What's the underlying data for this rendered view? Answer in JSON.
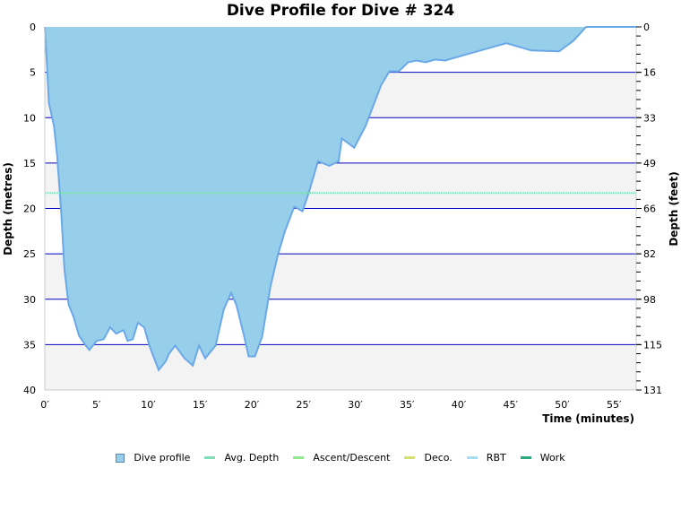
{
  "chart_data": {
    "type": "area",
    "title": "Dive Profile for Dive # 324",
    "xlabel": "Time (minutes)",
    "ylabel": "Depth (metres)",
    "ylabel_right": "Depth (feet)",
    "xlim": [
      0,
      57.2
    ],
    "ylim": [
      0,
      40
    ],
    "y_inverted": true,
    "x_ticks": [
      "0′",
      "5′",
      "10′",
      "15′",
      "20′",
      "25′",
      "30′",
      "35′",
      "40′",
      "45′",
      "50′",
      "55′"
    ],
    "y_ticks_left": [
      "0",
      "5",
      "10",
      "15",
      "20",
      "25",
      "30",
      "35",
      "40"
    ],
    "y_ticks_right": [
      "0",
      "16",
      "33",
      "49",
      "66",
      "82",
      "98",
      "115",
      "131"
    ],
    "grid": true,
    "legend_position": "bottom",
    "avg_depth": 18.3,
    "series": [
      {
        "name": "Dive profile",
        "x": [
          0,
          0.2,
          0.4,
          0.6,
          0.9,
          1.2,
          1.6,
          1.9,
          2.3,
          2.8,
          3.3,
          3.9,
          4.3,
          5.0,
          5.0,
          5.7,
          6.3,
          6.9,
          7.6,
          8.0,
          8.5,
          9.0,
          9.6,
          10.1,
          10.4,
          11.0,
          11.7,
          12.0,
          12.6,
          13.5,
          14.3,
          14.9,
          15.5,
          16.5,
          17.3,
          18.0,
          18.5,
          19.2,
          19.7,
          20.3,
          21.0,
          21.8,
          22.5,
          23.2,
          24.1,
          24.9,
          25.5,
          26.4,
          27.5,
          28.4,
          28.7,
          29.9,
          31.0,
          31.5,
          32.5,
          33.3,
          34.2,
          35.1,
          35.9,
          36.8,
          37.7,
          38.7,
          40.5,
          42.4,
          44.6,
          47.0,
          49.7,
          51.1,
          52.3,
          54.0,
          55.0,
          56.9,
          57.0,
          57.2
        ],
        "values": [
          0,
          4.0,
          8.4,
          9.4,
          11.0,
          14.3,
          20.7,
          26.7,
          30.6,
          32.0,
          34.0,
          35.0,
          35.6,
          34.6,
          34.6,
          34.4,
          33.1,
          33.8,
          33.4,
          34.6,
          34.4,
          32.6,
          33.1,
          35.1,
          36.0,
          37.8,
          36.8,
          36.0,
          35.1,
          36.5,
          37.3,
          35.1,
          36.5,
          35.1,
          31.1,
          29.3,
          30.6,
          33.8,
          36.3,
          36.3,
          34.1,
          28.6,
          25.2,
          22.5,
          19.8,
          20.3,
          18.3,
          14.8,
          15.3,
          14.8,
          12.3,
          13.3,
          10.9,
          9.4,
          6.4,
          4.9,
          4.9,
          3.9,
          3.7,
          3.9,
          3.6,
          3.7,
          3.1,
          2.5,
          1.8,
          2.6,
          2.7,
          1.5,
          0,
          0,
          0,
          0,
          0,
          0
        ],
        "color": "#97cfea"
      },
      {
        "name": "Avg. Depth",
        "color": "#7fe0b8"
      },
      {
        "name": "Ascent/Descent",
        "color": "#90e890"
      },
      {
        "name": "Deco.",
        "color": "#d4e070"
      },
      {
        "name": "RBT",
        "color": "#a8dcf0"
      },
      {
        "name": "Work",
        "color": "#2aa880"
      }
    ]
  },
  "legend": {
    "items": [
      "Dive profile",
      "Avg. Depth",
      "Ascent/Descent",
      "Deco.",
      "RBT",
      "Work"
    ]
  },
  "colors": {
    "profile_fill": "#97cfea",
    "profile_line": "#6aa8e8",
    "avg_line": "#7fe0b8",
    "gridline": "#0000c0",
    "band": "#f3f3f3"
  }
}
